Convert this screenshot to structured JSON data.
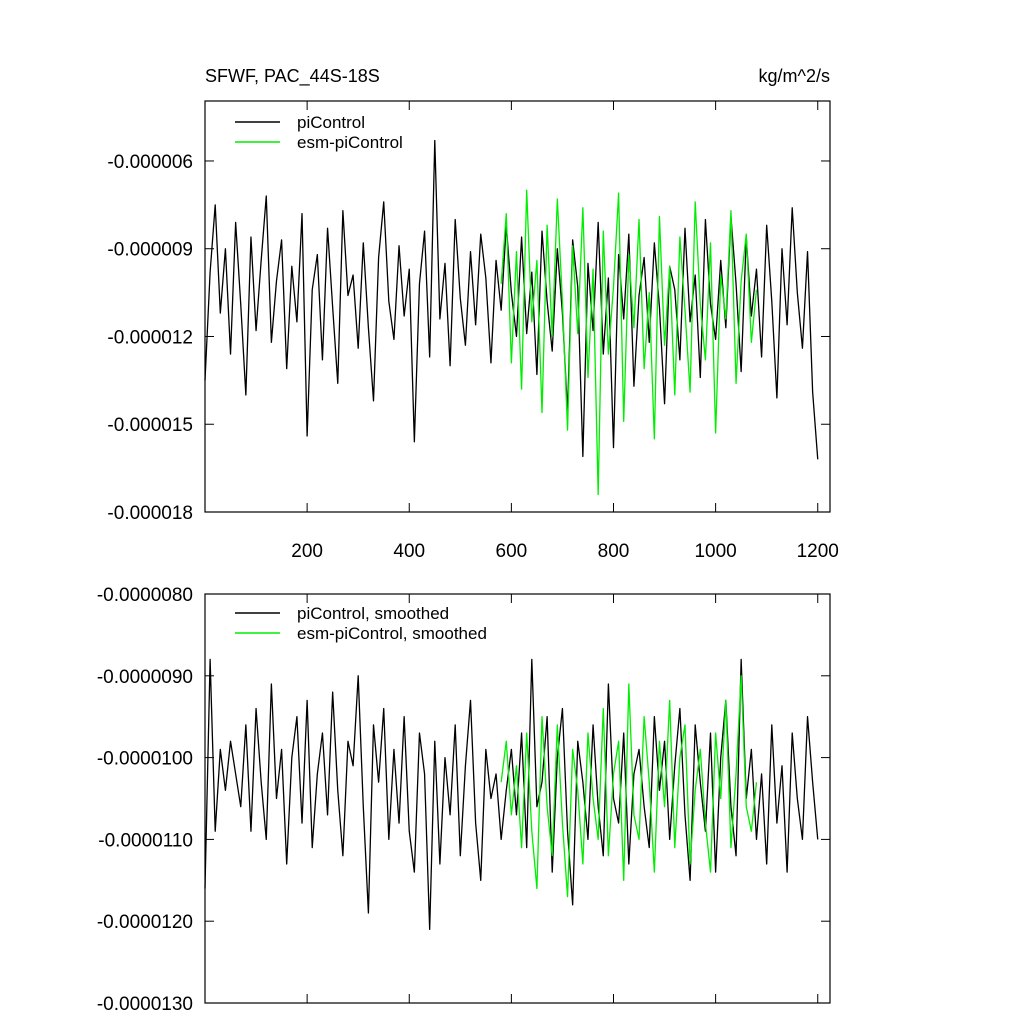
{
  "chart_data": [
    {
      "type": "line",
      "title": "SFWF, PAC_44S-18S",
      "units": "kg/m^2/s",
      "xlim": [
        0,
        1224
      ],
      "xticks": [
        200,
        400,
        600,
        800,
        1000,
        1200
      ],
      "ylim": [
        -1.8e-05,
        -3.95e-06
      ],
      "yticks": [
        -6e-06,
        -9e-06,
        -1.2e-05,
        -1.5e-05,
        -1.8e-05
      ],
      "series": [
        {
          "name": "piControl",
          "color": "#000000",
          "x": [
            0,
            10,
            20,
            30,
            40,
            50,
            60,
            70,
            80,
            90,
            100,
            110,
            120,
            130,
            140,
            150,
            160,
            170,
            180,
            190,
            200,
            210,
            220,
            230,
            240,
            250,
            260,
            270,
            280,
            290,
            300,
            310,
            320,
            330,
            340,
            350,
            360,
            370,
            380,
            390,
            400,
            410,
            420,
            430,
            440,
            450,
            460,
            470,
            480,
            490,
            500,
            510,
            520,
            530,
            540,
            550,
            560,
            570,
            580,
            590,
            600,
            610,
            620,
            630,
            640,
            650,
            660,
            670,
            680,
            690,
            700,
            710,
            720,
            730,
            740,
            750,
            760,
            770,
            780,
            790,
            800,
            810,
            820,
            830,
            840,
            850,
            860,
            870,
            880,
            890,
            900,
            910,
            920,
            930,
            940,
            950,
            960,
            970,
            980,
            990,
            1000,
            1010,
            1020,
            1030,
            1040,
            1050,
            1060,
            1070,
            1080,
            1090,
            1100,
            1110,
            1120,
            1130,
            1140,
            1150,
            1160,
            1170,
            1180,
            1190,
            1200
          ],
          "values": [
            -1.35e-05,
            -9.8e-06,
            -7.5e-06,
            -1.12e-05,
            -9e-06,
            -1.26e-05,
            -8.1e-06,
            -1.09e-05,
            -1.4e-05,
            -8.6e-06,
            -1.18e-05,
            -9.4e-06,
            -7.2e-06,
            -1.22e-05,
            -1.01e-05,
            -8.7e-06,
            -1.31e-05,
            -9.6e-06,
            -1.15e-05,
            -7.8e-06,
            -1.54e-05,
            -1.04e-05,
            -9.2e-06,
            -1.28e-05,
            -8.3e-06,
            -1.1e-05,
            -1.36e-05,
            -7.7e-06,
            -1.06e-05,
            -9.9e-06,
            -1.24e-05,
            -8.8e-06,
            -1.17e-05,
            -1.42e-05,
            -9.3e-06,
            -7.4e-06,
            -1.08e-05,
            -1.21e-05,
            -8.9e-06,
            -1.13e-05,
            -9.7e-06,
            -1.56e-05,
            -1.02e-05,
            -8.4e-06,
            -1.27e-05,
            -5.3e-06,
            -1.14e-05,
            -9.5e-06,
            -1.3e-05,
            -8e-06,
            -1.07e-05,
            -1.23e-05,
            -9.1e-06,
            -1.16e-05,
            -8.5e-06,
            -1e-05,
            -1.29e-05,
            -9.4e-06,
            -1.11e-05,
            -8.2e-06,
            -1.05e-05,
            -1.2e-05,
            -8.6e-06,
            -1.19e-05,
            -9.8e-06,
            -1.33e-05,
            -8.4e-06,
            -1.08e-05,
            -1.25e-05,
            -9e-06,
            -1.12e-05,
            -1.46e-05,
            -8.7e-06,
            -1.03e-05,
            -1.61e-05,
            -9.5e-06,
            -1.18e-05,
            -8.1e-06,
            -1.26e-05,
            -1e-05,
            -1.58e-05,
            -9.2e-06,
            -1.14e-05,
            -8.5e-06,
            -1.37e-05,
            -1.06e-05,
            -9.3e-06,
            -1.22e-05,
            -8.8e-06,
            -1.1e-05,
            -1.43e-05,
            -9.6e-06,
            -1.04e-05,
            -1.28e-05,
            -8.3e-06,
            -1.15e-05,
            -9.9e-06,
            -1.34e-05,
            -8e-06,
            -1.09e-05,
            -1.21e-05,
            -9.4e-06,
            -1.17e-05,
            -7.9e-06,
            -1.02e-05,
            -1.32e-05,
            -8.6e-06,
            -1.13e-05,
            -9.7e-06,
            -1.27e-05,
            -8.2e-06,
            -1.08e-05,
            -1.41e-05,
            -9e-06,
            -1.16e-05,
            -7.6e-06,
            -1.05e-05,
            -1.24e-05,
            -9.1e-06,
            -1.39e-05,
            -1.62e-05
          ]
        },
        {
          "name": "esm-piControl",
          "color": "#00ee00",
          "x": [
            580,
            590,
            600,
            610,
            620,
            630,
            640,
            650,
            660,
            670,
            680,
            690,
            700,
            710,
            720,
            730,
            740,
            750,
            760,
            770,
            780,
            790,
            800,
            810,
            820,
            830,
            840,
            850,
            860,
            870,
            880,
            890,
            900,
            910,
            920,
            930,
            940,
            950,
            960,
            970,
            980,
            990,
            1000,
            1010,
            1020,
            1030,
            1040,
            1050,
            1060,
            1070,
            1080
          ],
          "values": [
            -1.02e-05,
            -7.8e-06,
            -1.29e-05,
            -9.1e-06,
            -1.38e-05,
            -7e-06,
            -1.15e-05,
            -9.4e-06,
            -1.46e-05,
            -8.2e-06,
            -1.2e-05,
            -7.3e-06,
            -1.08e-05,
            -1.52e-05,
            -8.9e-06,
            -1.19e-05,
            -7.6e-06,
            -1.34e-05,
            -9.7e-06,
            -1.74e-05,
            -8.4e-06,
            -1.26e-05,
            -1.03e-05,
            -7.1e-06,
            -1.49e-05,
            -9.2e-06,
            -1.17e-05,
            -8e-06,
            -1.31e-05,
            -1.05e-05,
            -1.55e-05,
            -7.9e-06,
            -1.23e-05,
            -9.6e-06,
            -1.4e-05,
            -8.6e-06,
            -1.11e-05,
            -1.39e-05,
            -7.4e-06,
            -1.09e-05,
            -1.28e-05,
            -8.8e-06,
            -1.53e-05,
            -9.9e-06,
            -1.14e-05,
            -7.7e-06,
            -1.36e-05,
            -1.01e-05,
            -8.5e-06,
            -1.22e-05,
            -1.04e-05
          ]
        }
      ]
    },
    {
      "type": "line",
      "xlim": [
        0,
        1224
      ],
      "xticks": [
        200,
        400,
        600,
        800,
        1000,
        1200
      ],
      "ylim": [
        -1.3e-05,
        -8e-06
      ],
      "yticks": [
        {
          "value": -8e-06,
          "label": "-0.0000080"
        },
        {
          "value": -9e-06,
          "label": "-0.0000090"
        },
        {
          "value": -1e-05,
          "label": "-0.0000100"
        },
        {
          "value": -1.1e-05,
          "label": "-0.0000110"
        },
        {
          "value": -1.2e-05,
          "label": "-0.0000120"
        },
        {
          "value": -1.3e-05,
          "label": "-0.0000130"
        }
      ],
      "series": [
        {
          "name": "piControl, smoothed",
          "color": "#000000",
          "x": [
            0,
            10,
            20,
            30,
            40,
            50,
            60,
            70,
            80,
            90,
            100,
            110,
            120,
            130,
            140,
            150,
            160,
            170,
            180,
            190,
            200,
            210,
            220,
            230,
            240,
            250,
            260,
            270,
            280,
            290,
            300,
            310,
            320,
            330,
            340,
            350,
            360,
            370,
            380,
            390,
            400,
            410,
            420,
            430,
            440,
            450,
            460,
            470,
            480,
            490,
            500,
            510,
            520,
            530,
            540,
            550,
            560,
            570,
            580,
            590,
            600,
            610,
            620,
            630,
            640,
            650,
            660,
            670,
            680,
            690,
            700,
            710,
            720,
            730,
            740,
            750,
            760,
            770,
            780,
            790,
            800,
            810,
            820,
            830,
            840,
            850,
            860,
            870,
            880,
            890,
            900,
            910,
            920,
            930,
            940,
            950,
            960,
            970,
            980,
            990,
            1000,
            1010,
            1020,
            1030,
            1040,
            1050,
            1060,
            1070,
            1080,
            1090,
            1100,
            1110,
            1120,
            1130,
            1140,
            1150,
            1160,
            1170,
            1180,
            1190,
            1200
          ],
          "values": [
            -1.16e-05,
            -8.8e-06,
            -1.09e-05,
            -9.9e-06,
            -1.04e-05,
            -9.8e-06,
            -1.02e-05,
            -1.06e-05,
            -9.6e-06,
            -1.09e-05,
            -9.4e-06,
            -1.03e-05,
            -1.1e-05,
            -9.1e-06,
            -1.05e-05,
            -9.9e-06,
            -1.13e-05,
            -1e-05,
            -9.5e-06,
            -1.08e-05,
            -9.3e-06,
            -1.11e-05,
            -1.02e-05,
            -9.7e-06,
            -1.07e-05,
            -9.2e-06,
            -1.04e-05,
            -1.12e-05,
            -9.8e-06,
            -1.01e-05,
            -9e-06,
            -1.06e-05,
            -1.19e-05,
            -9.6e-06,
            -1.03e-05,
            -9.4e-06,
            -1.1e-05,
            -9.9e-06,
            -1.08e-05,
            -9.5e-06,
            -1.09e-05,
            -1.14e-05,
            -9.7e-06,
            -1.02e-05,
            -1.21e-05,
            -9.8e-06,
            -1.13e-05,
            -1e-05,
            -1.07e-05,
            -9.6e-06,
            -1.12e-05,
            -1.01e-05,
            -9.3e-06,
            -1.08e-05,
            -1.15e-05,
            -9.9e-06,
            -1.05e-05,
            -1.02e-05,
            -1.1e-05,
            -1.04e-05,
            -9.9e-06,
            -1.07e-05,
            -9.7e-06,
            -1.11e-05,
            -8.8e-06,
            -1.06e-05,
            -1.03e-05,
            -9.5e-06,
            -1.14e-05,
            -1e-05,
            -9.4e-06,
            -1.09e-05,
            -1.18e-05,
            -9.8e-06,
            -1.03e-05,
            -1.1e-05,
            -9.6e-06,
            -1.06e-05,
            -1.12e-05,
            -9.1e-06,
            -1.05e-05,
            -1.08e-05,
            -9.7e-06,
            -1.13e-05,
            -1.02e-05,
            -9.9e-06,
            -1.06e-05,
            -1.11e-05,
            -9.5e-06,
            -1.04e-05,
            -9.8e-06,
            -1.1e-05,
            -1.01e-05,
            -9.4e-06,
            -1.07e-05,
            -1.15e-05,
            -9.6e-06,
            -1.03e-05,
            -1.09e-05,
            -9.7e-06,
            -1.14e-05,
            -1e-05,
            -9.3e-06,
            -1.06e-05,
            -1.12e-05,
            -8.8e-06,
            -1.05e-05,
            -9.9e-06,
            -1.1e-05,
            -1.02e-05,
            -1.13e-05,
            -9.6e-06,
            -1.08e-05,
            -1.01e-05,
            -1.14e-05,
            -9.7e-06,
            -1.05e-05,
            -1.1e-05,
            -9.5e-06,
            -1.03e-05,
            -1.1e-05
          ]
        },
        {
          "name": "esm-piControl, smoothed",
          "color": "#00ee00",
          "x": [
            580,
            590,
            600,
            610,
            620,
            630,
            640,
            650,
            660,
            670,
            680,
            690,
            700,
            710,
            720,
            730,
            740,
            750,
            760,
            770,
            780,
            790,
            800,
            810,
            820,
            830,
            840,
            850,
            860,
            870,
            880,
            890,
            900,
            910,
            920,
            930,
            940,
            950,
            960,
            970,
            980,
            990,
            1000,
            1010,
            1020,
            1030,
            1040,
            1050,
            1060,
            1070,
            1080
          ],
          "values": [
            -1.03e-05,
            -9.8e-06,
            -1.07e-05,
            -1.01e-05,
            -1.11e-05,
            -9.7e-06,
            -1.09e-05,
            -1.16e-05,
            -9.5e-06,
            -1.06e-05,
            -1.12e-05,
            -9.6e-06,
            -1.08e-05,
            -1.17e-05,
            -9.9e-06,
            -1.04e-05,
            -1.13e-05,
            -9.7e-06,
            -1.05e-05,
            -1.1e-05,
            -9.4e-06,
            -1.12e-05,
            -1.02e-05,
            -9.8e-06,
            -1.15e-05,
            -9.1e-06,
            -1.07e-05,
            -1.1e-05,
            -9.5e-06,
            -1.03e-05,
            -1.14e-05,
            -9.8e-06,
            -1.06e-05,
            -9.3e-06,
            -1.11e-05,
            -1e-05,
            -9.6e-06,
            -1.13e-05,
            -1.04e-05,
            -9.9e-06,
            -1.08e-05,
            -1.14e-05,
            -9.7e-06,
            -1.05e-05,
            -9.3e-06,
            -1.11e-05,
            -1.02e-05,
            -9e-06,
            -1.06e-05,
            -1.09e-05,
            -1.03e-05
          ]
        }
      ]
    }
  ]
}
